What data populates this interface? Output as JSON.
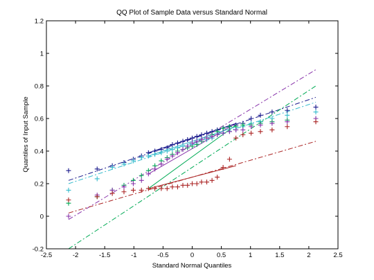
{
  "chart_data": {
    "type": "scatter",
    "title": "QQ Plot of Sample Data versus Standard Normal",
    "xlabel": "Standard Normal Quantiles",
    "ylabel": "Quantiles of Input Sample",
    "xlim": [
      -2.5,
      2.5
    ],
    "ylim": [
      -0.2,
      1.2
    ],
    "xticks": [
      "-2.5",
      "-2",
      "-1.5",
      "-1",
      "-0.5",
      "0",
      "0.5",
      "1",
      "1.5",
      "2",
      "2.5"
    ],
    "yticks": [
      "-0.2",
      "0",
      "0.2",
      "0.4",
      "0.6",
      "0.8",
      "1",
      "1.2"
    ],
    "grid": false,
    "legend": "none",
    "marker": "+",
    "x": [
      -2.12,
      -1.63,
      -1.37,
      -1.17,
      -1.01,
      -0.87,
      -0.75,
      -0.64,
      -0.53,
      -0.43,
      -0.34,
      -0.25,
      -0.16,
      -0.08,
      0.0,
      0.08,
      0.16,
      0.25,
      0.34,
      0.43,
      0.53,
      0.64,
      0.75,
      0.87,
      1.01,
      1.17,
      1.37,
      1.63,
      2.12
    ],
    "series": [
      {
        "color": "#1a1a8c",
        "values": [
          0.28,
          0.29,
          0.31,
          0.33,
          0.35,
          0.37,
          0.39,
          0.4,
          0.41,
          0.42,
          0.44,
          0.45,
          0.46,
          0.47,
          0.48,
          0.49,
          0.5,
          0.51,
          0.52,
          0.53,
          0.54,
          0.55,
          0.56,
          0.57,
          0.6,
          0.62,
          0.64,
          0.65,
          0.67
        ],
        "ref_line": {
          "x1": -2.12,
          "y1": 0.22,
          "x2": 2.12,
          "y2": 0.73
        }
      },
      {
        "color": "#33bbcc",
        "values": [
          0.16,
          0.23,
          0.3,
          0.32,
          0.34,
          0.36,
          0.37,
          0.38,
          0.39,
          0.4,
          0.41,
          0.42,
          0.43,
          0.43,
          0.44,
          0.45,
          0.46,
          0.47,
          0.48,
          0.5,
          0.51,
          0.52,
          0.53,
          0.55,
          0.57,
          0.58,
          0.6,
          0.62,
          0.64
        ],
        "ref_line": {
          "x1": -2.12,
          "y1": 0.2,
          "x2": 2.12,
          "y2": 0.7
        }
      },
      {
        "color": "#00aa55",
        "values": [
          0.08,
          0.12,
          0.16,
          0.19,
          0.22,
          0.25,
          0.28,
          0.31,
          0.34,
          0.36,
          0.38,
          0.4,
          0.41,
          0.42,
          0.43,
          0.44,
          0.46,
          0.48,
          0.5,
          0.52,
          0.54,
          0.55,
          0.55,
          0.56,
          0.56,
          0.57,
          0.58,
          0.59,
          0.6
        ],
        "ref_line": {
          "x1": -2.12,
          "y1": -0.2,
          "x2": 2.12,
          "y2": 0.8
        }
      },
      {
        "color": "#8833aa",
        "values": [
          0.0,
          0.13,
          0.16,
          0.18,
          0.2,
          0.22,
          0.26,
          0.29,
          0.32,
          0.35,
          0.37,
          0.39,
          0.41,
          0.43,
          0.45,
          0.46,
          0.47,
          0.48,
          0.49,
          0.5,
          0.51,
          0.52,
          0.53,
          0.53,
          0.55,
          0.56,
          0.57,
          0.58,
          0.6
        ],
        "ref_line": {
          "x1": -2.12,
          "y1": -0.02,
          "x2": 2.12,
          "y2": 0.9
        }
      },
      {
        "color": "#aa2222",
        "values": [
          0.1,
          0.12,
          0.14,
          0.15,
          0.16,
          0.16,
          0.17,
          0.17,
          0.17,
          0.17,
          0.18,
          0.18,
          0.19,
          0.19,
          0.2,
          0.2,
          0.21,
          0.21,
          0.22,
          0.24,
          0.3,
          0.35,
          0.48,
          0.5,
          0.51,
          0.52,
          0.53,
          0.55,
          0.58
        ],
        "ref_line": {
          "x1": -2.12,
          "y1": 0.02,
          "x2": 2.12,
          "y2": 0.46
        }
      }
    ],
    "solid_segments": [
      {
        "color": "#aa2222",
        "x1": -0.75,
        "y1": 0.17,
        "x2": 0.75,
        "y2": 0.31
      },
      {
        "color": "#00aa55",
        "x1": -0.75,
        "y1": 0.17,
        "x2": 0.75,
        "y2": 0.56
      },
      {
        "color": "#8833aa",
        "x1": -0.75,
        "y1": 0.26,
        "x2": 0.75,
        "y2": 0.57
      },
      {
        "color": "#33bbcc",
        "x1": -0.75,
        "y1": 0.37,
        "x2": 0.75,
        "y2": 0.55
      },
      {
        "color": "#1a1a8c",
        "x1": -0.75,
        "y1": 0.39,
        "x2": 0.75,
        "y2": 0.57
      }
    ]
  }
}
